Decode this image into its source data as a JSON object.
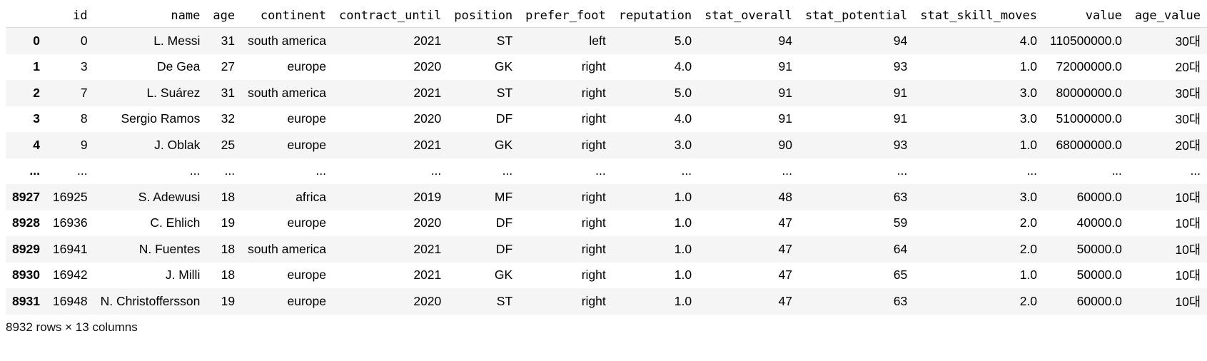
{
  "table": {
    "index_header": "",
    "columns": [
      "id",
      "name",
      "age",
      "continent",
      "contract_until",
      "position",
      "prefer_foot",
      "reputation",
      "stat_overall",
      "stat_potential",
      "stat_skill_moves",
      "value",
      "age_value"
    ],
    "rows": [
      {
        "index": "0",
        "cells": [
          "0",
          "L. Messi",
          "31",
          "south america",
          "2021",
          "ST",
          "left",
          "5.0",
          "94",
          "94",
          "4.0",
          "110500000.0",
          "30대"
        ]
      },
      {
        "index": "1",
        "cells": [
          "3",
          "De Gea",
          "27",
          "europe",
          "2020",
          "GK",
          "right",
          "4.0",
          "91",
          "93",
          "1.0",
          "72000000.0",
          "20대"
        ]
      },
      {
        "index": "2",
        "cells": [
          "7",
          "L. Suárez",
          "31",
          "south america",
          "2021",
          "ST",
          "right",
          "5.0",
          "91",
          "91",
          "3.0",
          "80000000.0",
          "30대"
        ]
      },
      {
        "index": "3",
        "cells": [
          "8",
          "Sergio Ramos",
          "32",
          "europe",
          "2020",
          "DF",
          "right",
          "4.0",
          "91",
          "91",
          "3.0",
          "51000000.0",
          "30대"
        ]
      },
      {
        "index": "4",
        "cells": [
          "9",
          "J. Oblak",
          "25",
          "europe",
          "2021",
          "GK",
          "right",
          "3.0",
          "90",
          "93",
          "1.0",
          "68000000.0",
          "20대"
        ]
      },
      {
        "index": "...",
        "cells": [
          "...",
          "...",
          "...",
          "...",
          "...",
          "...",
          "...",
          "...",
          "...",
          "...",
          "...",
          "...",
          "..."
        ]
      },
      {
        "index": "8927",
        "cells": [
          "16925",
          "S. Adewusi",
          "18",
          "africa",
          "2019",
          "MF",
          "right",
          "1.0",
          "48",
          "63",
          "3.0",
          "60000.0",
          "10대"
        ]
      },
      {
        "index": "8928",
        "cells": [
          "16936",
          "C. Ehlich",
          "19",
          "europe",
          "2020",
          "DF",
          "right",
          "1.0",
          "47",
          "59",
          "2.0",
          "40000.0",
          "10대"
        ]
      },
      {
        "index": "8929",
        "cells": [
          "16941",
          "N. Fuentes",
          "18",
          "south america",
          "2021",
          "DF",
          "right",
          "1.0",
          "47",
          "64",
          "2.0",
          "50000.0",
          "10대"
        ]
      },
      {
        "index": "8930",
        "cells": [
          "16942",
          "J. Milli",
          "18",
          "europe",
          "2021",
          "GK",
          "right",
          "1.0",
          "47",
          "65",
          "1.0",
          "50000.0",
          "10대"
        ]
      },
      {
        "index": "8931",
        "cells": [
          "16948",
          "N. Christoffersson",
          "19",
          "europe",
          "2020",
          "ST",
          "right",
          "1.0",
          "47",
          "63",
          "2.0",
          "60000.0",
          "10대"
        ]
      }
    ]
  },
  "shape_info": "8932 rows × 13 columns"
}
